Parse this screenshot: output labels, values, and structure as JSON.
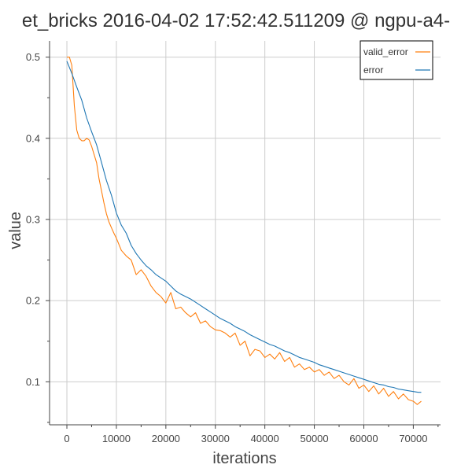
{
  "chart_data": {
    "type": "line",
    "title": "et_bricks 2016-04-02 17:52:42.511209 @ ngpu-a4-",
    "xlabel": "iterations",
    "ylabel": "value",
    "xlim": [
      -3500,
      75500
    ],
    "ylim": [
      0.047,
      0.52
    ],
    "xticks": [
      0,
      10000,
      20000,
      30000,
      40000,
      50000,
      60000,
      70000
    ],
    "yticks": [
      0.1,
      0.2,
      0.3,
      0.4,
      0.5
    ],
    "grid": true,
    "legend_position": "top-right",
    "series": [
      {
        "name": "valid_error",
        "color": "#ff7f0e",
        "x": [
          0,
          500,
          1000,
          1500,
          2000,
          2500,
          3000,
          3500,
          4000,
          4500,
          5000,
          5500,
          6000,
          6500,
          7000,
          7500,
          8000,
          8500,
          9000,
          9500,
          10000,
          11000,
          12000,
          13000,
          14000,
          15000,
          16000,
          17000,
          18000,
          19000,
          20000,
          21000,
          22000,
          23000,
          24000,
          25000,
          26000,
          27000,
          28000,
          29000,
          30000,
          31000,
          32000,
          33000,
          34000,
          35000,
          36000,
          37000,
          38000,
          39000,
          40000,
          41000,
          42000,
          43000,
          44000,
          45000,
          46000,
          47000,
          48000,
          49000,
          50000,
          51000,
          52000,
          53000,
          54000,
          55000,
          56000,
          57000,
          58000,
          59000,
          60000,
          61000,
          62000,
          63000,
          64000,
          65000,
          66000,
          67000,
          68000,
          69000,
          70000,
          70800,
          71600
        ],
        "values": [
          0.5,
          0.5,
          0.49,
          0.44,
          0.41,
          0.4,
          0.397,
          0.397,
          0.4,
          0.398,
          0.39,
          0.38,
          0.37,
          0.35,
          0.335,
          0.32,
          0.307,
          0.297,
          0.29,
          0.283,
          0.277,
          0.262,
          0.255,
          0.25,
          0.232,
          0.238,
          0.23,
          0.218,
          0.21,
          0.205,
          0.197,
          0.21,
          0.19,
          0.192,
          0.185,
          0.18,
          0.185,
          0.172,
          0.175,
          0.168,
          0.164,
          0.163,
          0.16,
          0.155,
          0.16,
          0.145,
          0.15,
          0.132,
          0.14,
          0.138,
          0.13,
          0.134,
          0.128,
          0.136,
          0.125,
          0.13,
          0.118,
          0.122,
          0.115,
          0.118,
          0.112,
          0.115,
          0.108,
          0.112,
          0.104,
          0.108,
          0.1,
          0.096,
          0.104,
          0.092,
          0.096,
          0.088,
          0.095,
          0.085,
          0.092,
          0.082,
          0.088,
          0.079,
          0.085,
          0.078,
          0.076,
          0.072,
          0.076
        ]
      },
      {
        "name": "error",
        "color": "#1f77b4",
        "x": [
          0,
          1000,
          2000,
          3000,
          4000,
          5000,
          6000,
          7000,
          8000,
          9000,
          10000,
          11000,
          12000,
          13000,
          14000,
          15000,
          16000,
          17000,
          18000,
          19000,
          20000,
          21000,
          22000,
          23000,
          24000,
          25000,
          26000,
          27000,
          28000,
          29000,
          30000,
          31000,
          32000,
          33000,
          34000,
          35000,
          36000,
          37000,
          38000,
          39000,
          40000,
          41000,
          42000,
          43000,
          44000,
          45000,
          46000,
          47000,
          48000,
          49000,
          50000,
          51000,
          52000,
          53000,
          54000,
          55000,
          56000,
          57000,
          58000,
          59000,
          60000,
          61000,
          62000,
          63000,
          64000,
          65000,
          66000,
          67000,
          68000,
          69000,
          70000,
          71000,
          71600
        ],
        "values": [
          0.495,
          0.48,
          0.463,
          0.447,
          0.425,
          0.408,
          0.392,
          0.37,
          0.348,
          0.33,
          0.308,
          0.293,
          0.283,
          0.268,
          0.258,
          0.25,
          0.243,
          0.238,
          0.232,
          0.228,
          0.224,
          0.218,
          0.212,
          0.208,
          0.205,
          0.202,
          0.198,
          0.194,
          0.19,
          0.186,
          0.182,
          0.178,
          0.175,
          0.172,
          0.168,
          0.165,
          0.162,
          0.158,
          0.155,
          0.152,
          0.149,
          0.146,
          0.144,
          0.141,
          0.138,
          0.136,
          0.133,
          0.13,
          0.128,
          0.126,
          0.124,
          0.121,
          0.119,
          0.117,
          0.115,
          0.113,
          0.111,
          0.109,
          0.107,
          0.105,
          0.103,
          0.101,
          0.099,
          0.097,
          0.096,
          0.094,
          0.093,
          0.091,
          0.09,
          0.089,
          0.088,
          0.087,
          0.087
        ]
      }
    ]
  }
}
